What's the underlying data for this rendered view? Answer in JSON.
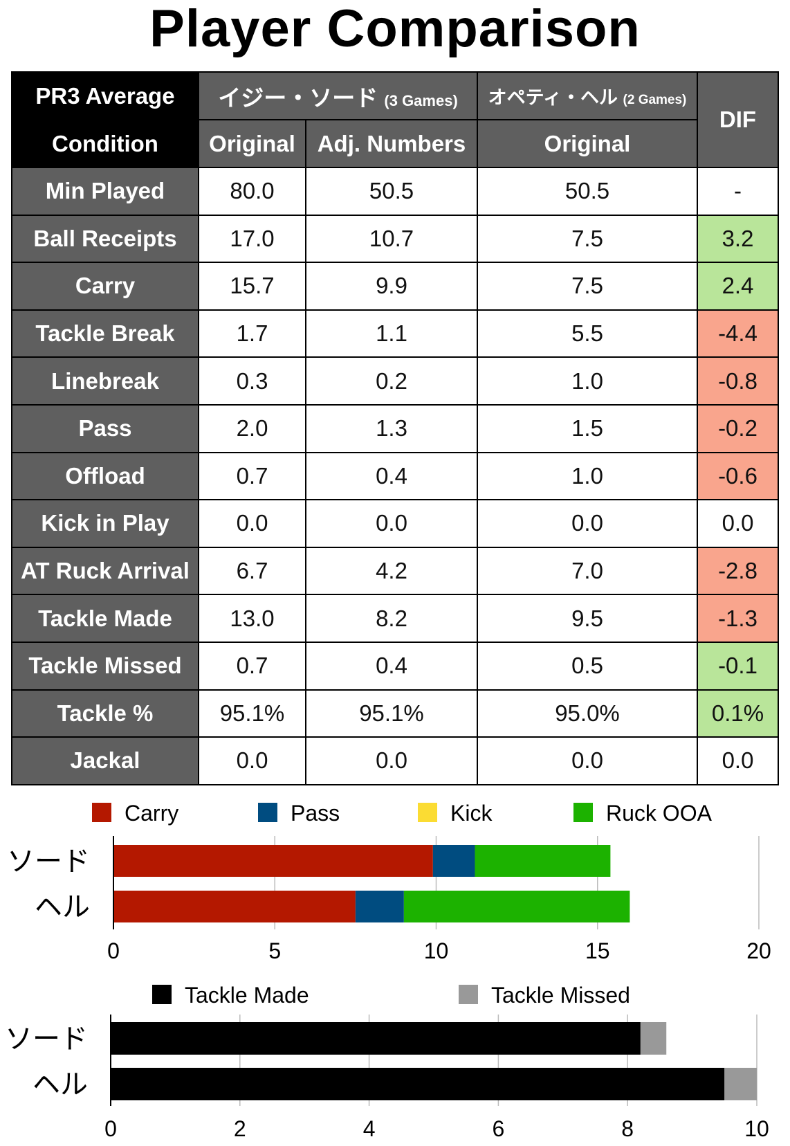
{
  "title": "Player Comparison",
  "table": {
    "header": {
      "corner_line1": "PR3 Average",
      "corner_line2": "Condition",
      "player1": "イジー・ソード",
      "player1_games": "(3 Games)",
      "player2": "オペティ・ヘル",
      "player2_games": "(2 Games)",
      "dif": "DIF",
      "p1_original": "Original",
      "p1_adj": "Adj. Numbers",
      "p2_original": "Original"
    },
    "rows": [
      {
        "label": "Min Played",
        "p1": "80.0",
        "p1_adj": "50.5",
        "p2": "50.5",
        "dif": "-",
        "dif_status": "none"
      },
      {
        "label": "Ball Receipts",
        "p1": "17.0",
        "p1_adj": "10.7",
        "p2": "7.5",
        "dif": "3.2",
        "dif_status": "pos"
      },
      {
        "label": "Carry",
        "p1": "15.7",
        "p1_adj": "9.9",
        "p2": "7.5",
        "dif": "2.4",
        "dif_status": "pos"
      },
      {
        "label": "Tackle Break",
        "p1": "1.7",
        "p1_adj": "1.1",
        "p2": "5.5",
        "dif": "-4.4",
        "dif_status": "neg"
      },
      {
        "label": "Linebreak",
        "p1": "0.3",
        "p1_adj": "0.2",
        "p2": "1.0",
        "dif": "-0.8",
        "dif_status": "neg"
      },
      {
        "label": "Pass",
        "p1": "2.0",
        "p1_adj": "1.3",
        "p2": "1.5",
        "dif": "-0.2",
        "dif_status": "neg"
      },
      {
        "label": "Offload",
        "p1": "0.7",
        "p1_adj": "0.4",
        "p2": "1.0",
        "dif": "-0.6",
        "dif_status": "neg"
      },
      {
        "label": "Kick in Play",
        "p1": "0.0",
        "p1_adj": "0.0",
        "p2": "0.0",
        "dif": "0.0",
        "dif_status": "none"
      },
      {
        "label": "AT Ruck Arrival",
        "p1": "6.7",
        "p1_adj": "4.2",
        "p2": "7.0",
        "dif": "-2.8",
        "dif_status": "neg"
      },
      {
        "label": "Tackle Made",
        "p1": "13.0",
        "p1_adj": "8.2",
        "p2": "9.5",
        "dif": "-1.3",
        "dif_status": "neg"
      },
      {
        "label": "Tackle Missed",
        "p1": "0.7",
        "p1_adj": "0.4",
        "p2": "0.5",
        "dif": "-0.1",
        "dif_status": "pos"
      },
      {
        "label": "Tackle %",
        "p1": "95.1%",
        "p1_adj": "95.1%",
        "p2": "95.0%",
        "dif": "0.1%",
        "dif_status": "pos"
      },
      {
        "label": "Jackal",
        "p1": "0.0",
        "p1_adj": "0.0",
        "p2": "0.0",
        "dif": "0.0",
        "dif_status": "none"
      }
    ],
    "colors": {
      "header": "#5f5f5f",
      "corner": "#000000",
      "pos": "#b9e59a",
      "neg": "#f9a58d"
    }
  },
  "chart_data": [
    {
      "type": "bar",
      "orientation": "horizontal",
      "stacked": true,
      "categories": [
        "ソード",
        "ヘル"
      ],
      "series": [
        {
          "name": "Carry",
          "values": [
            9.9,
            7.5
          ],
          "color": "#b41800"
        },
        {
          "name": "Pass",
          "values": [
            1.3,
            1.5
          ],
          "color": "#004c80"
        },
        {
          "name": "Kick",
          "values": [
            0,
            0
          ],
          "color": "#fbdc33"
        },
        {
          "name": "Ruck OOA",
          "values": [
            4.2,
            7.0
          ],
          "color": "#1cb200"
        }
      ],
      "xlim": [
        0,
        20
      ],
      "xticks": [
        "0",
        "5",
        "10",
        "15",
        "20"
      ],
      "grid": true,
      "legend": "top"
    },
    {
      "type": "bar",
      "orientation": "horizontal",
      "stacked": true,
      "categories": [
        "ソード",
        "ヘル"
      ],
      "series": [
        {
          "name": "Tackle Made",
          "values": [
            8.2,
            9.5
          ],
          "color": "#000000"
        },
        {
          "name": "Tackle Missed",
          "values": [
            0.4,
            0.5
          ],
          "color": "#999999"
        }
      ],
      "xlim": [
        0,
        10
      ],
      "xticks": [
        "0",
        "2",
        "4",
        "6",
        "8",
        "10"
      ],
      "grid": true,
      "legend": "top"
    }
  ]
}
